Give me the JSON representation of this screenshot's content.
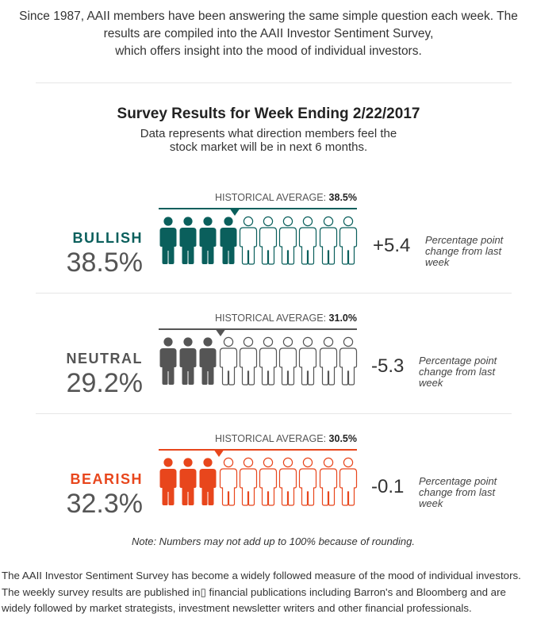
{
  "intro": {
    "line1": "Since 1987, AAII members have been answering the same simple question each week. The",
    "line2": "results are compiled into the AAII Investor Sentiment Survey,",
    "line3": "which offers insight into the mood of individual investors."
  },
  "survey": {
    "title": "Survey Results for Week Ending 2/22/2017",
    "subtitle_line1": "Data represents what direction members feel the",
    "subtitle_line2": "stock market will be in next 6 months."
  },
  "hist_prefix": "HISTORICAL AVERAGE:",
  "chart_data": {
    "type": "pictogram",
    "people_total": 10,
    "series": [
      {
        "name": "BULLISH",
        "value": 38.5,
        "value_label": "38.5%",
        "historical_average": 38.5,
        "historical_label": "38.5%",
        "filled_people": 4,
        "change": "+5.4",
        "change_note": "Percentage point change from last week",
        "color": "#0a5f5c"
      },
      {
        "name": "NEUTRAL",
        "value": 29.2,
        "value_label": "29.2%",
        "historical_average": 31.0,
        "historical_label": "31.0%",
        "filled_people": 3,
        "change": "-5.3",
        "change_note": "Percentage point change from last week",
        "color": "#555555"
      },
      {
        "name": "BEARISH",
        "value": 32.3,
        "value_label": "32.3%",
        "historical_average": 30.5,
        "historical_label": "30.5%",
        "filled_people": 3,
        "change": "-0.1",
        "change_note": "Percentage point change from last week",
        "color": "#e8461c"
      }
    ]
  },
  "note": "Note: Numbers may not add up to 100% because of rounding.",
  "footer": "The AAII Investor Sentiment Survey has become a widely followed measure of the mood of individual investors. The weekly survey results are published in▯ financial publications including Barron's and Bloomberg and are widely followed by market strategists, investment newsletter writers and other financial professionals."
}
